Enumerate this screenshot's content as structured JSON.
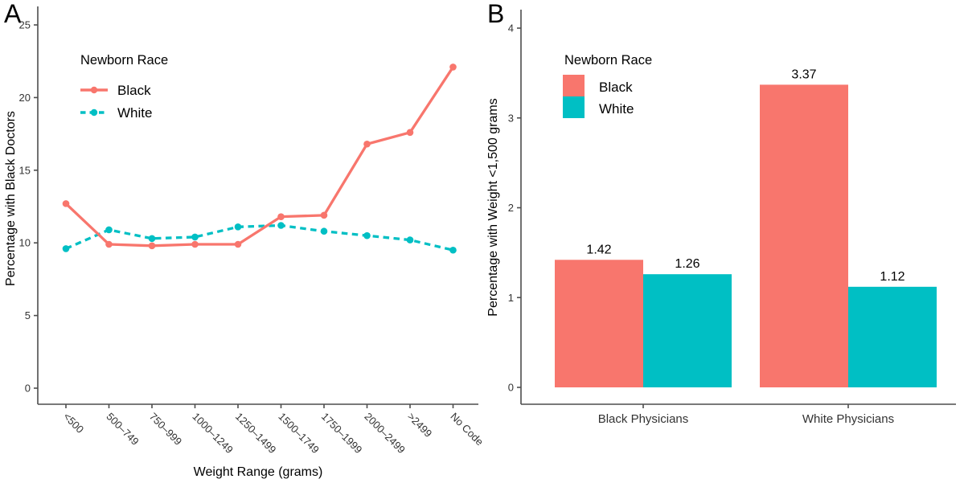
{
  "colors": {
    "black_series": "#F8766D",
    "white_series": "#00BFC4",
    "axis_line": "#4d4d4d",
    "tick_text": "#333333",
    "title_text": "#000000",
    "background": "#ffffff"
  },
  "chart_data": [
    {
      "type": "line",
      "panel_label": "A",
      "title": "",
      "xlabel": "Weight Range (grams)",
      "ylabel": "Percentage with Black Doctors",
      "ylim": [
        0,
        25
      ],
      "yticks": [
        0,
        5,
        10,
        15,
        20,
        25
      ],
      "grid": false,
      "legend_title": "Newborn Race",
      "legend_position": "top-left-inside",
      "categories": [
        "<500",
        "500–749",
        "750–999",
        "1000–1249",
        "1250–1499",
        "1500–1749",
        "1750–1999",
        "2000–2499",
        ">2499",
        "No Code"
      ],
      "series": [
        {
          "name": "White",
          "color": "#00BFC4",
          "line_style": "dashed",
          "marker": "circle",
          "values": [
            9.6,
            10.9,
            10.3,
            10.4,
            11.1,
            11.2,
            10.8,
            10.5,
            10.2,
            9.5
          ]
        },
        {
          "name": "Black",
          "color": "#F8766D",
          "line_style": "solid",
          "marker": "circle",
          "values": [
            12.7,
            9.9,
            9.8,
            9.9,
            9.9,
            11.8,
            11.9,
            16.8,
            17.6,
            22.1
          ]
        }
      ],
      "legend_order": [
        "Black",
        "White"
      ]
    },
    {
      "type": "bar",
      "panel_label": "B",
      "title": "",
      "xlabel": "",
      "ylabel": "Percentage with Weight <1,500 grams",
      "ylim": [
        0,
        4
      ],
      "yticks": [
        0,
        1,
        2,
        3,
        4
      ],
      "grid": false,
      "legend_title": "Newborn Race",
      "legend_position": "top-left-inside",
      "categories": [
        "Black Physicians",
        "White Physicians"
      ],
      "series": [
        {
          "name": "Black",
          "color": "#F8766D",
          "values": [
            1.42,
            3.37
          ],
          "value_labels": [
            "1.42",
            "3.37"
          ]
        },
        {
          "name": "White",
          "color": "#00BFC4",
          "values": [
            1.26,
            1.12
          ],
          "value_labels": [
            "1.26",
            "1.12"
          ]
        }
      ],
      "value_labels_shown": true
    }
  ]
}
